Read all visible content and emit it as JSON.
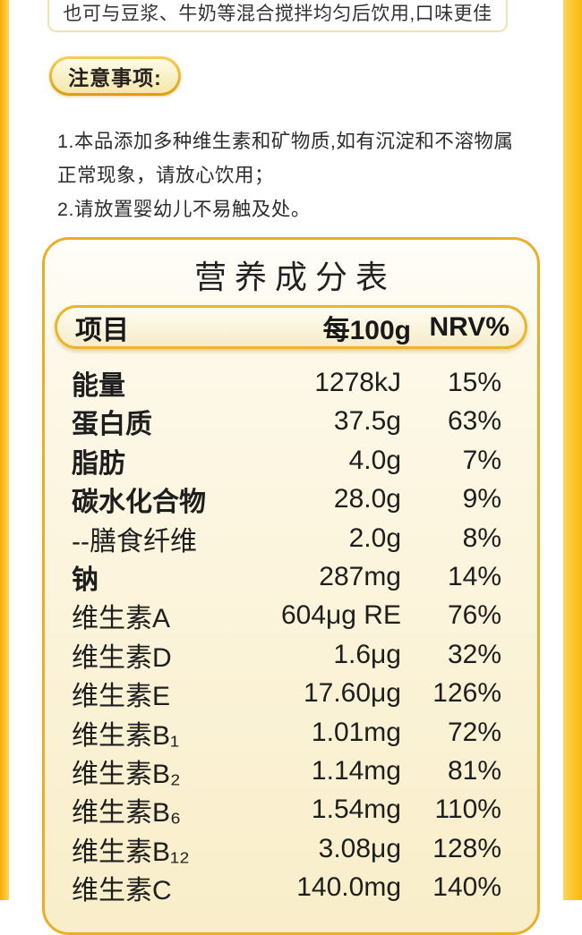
{
  "colors": {
    "rail_yellow": "#f8b909",
    "card_border_gold": "#ecae29",
    "card_fill_top": "#fffef9",
    "card_fill_bottom": "#f9eec9",
    "badge_border_gold": "#dc9f0e",
    "text_dark": "#1e1e1e"
  },
  "top_note": {
    "text": "也可与豆浆、牛奶等混合搅拌均匀后饮用,口味更佳"
  },
  "notice": {
    "badge_label": "注意事项:",
    "lines": [
      "1.本品添加多种维生素和矿物质,如有沉淀和不溶物属",
      "正常现象，请放心饮用；",
      "2.请放置婴幼儿不易触及处。"
    ]
  },
  "nutrition_table": {
    "title": "营养成分表",
    "columns": [
      "项目",
      "每100g",
      "NRV%"
    ],
    "rows": [
      {
        "name": "能量",
        "per100g": "1278kJ",
        "nrv": "15%",
        "bold": true
      },
      {
        "name": "蛋白质",
        "per100g": "37.5g",
        "nrv": "63%",
        "bold": true
      },
      {
        "name": "脂肪",
        "per100g": "4.0g",
        "nrv": "7%",
        "bold": true
      },
      {
        "name": "碳水化合物",
        "per100g": "28.0g",
        "nrv": "9%",
        "bold": true
      },
      {
        "name": "--膳食纤维",
        "per100g": "2.0g",
        "nrv": "8%",
        "bold": false
      },
      {
        "name": "钠",
        "per100g": "287mg",
        "nrv": "14%",
        "bold": true
      },
      {
        "name": "维生素A",
        "per100g": "604μg RE",
        "nrv": "76%",
        "bold": false
      },
      {
        "name": "维生素D",
        "per100g": "1.6μg",
        "nrv": "32%",
        "bold": false
      },
      {
        "name": "维生素E",
        "per100g": "17.60μg",
        "nrv": "126%",
        "bold": false
      },
      {
        "name": "维生素B₁",
        "per100g": "1.01mg",
        "nrv": "72%",
        "bold": false
      },
      {
        "name": "维生素B₂",
        "per100g": "1.14mg",
        "nrv": "81%",
        "bold": false
      },
      {
        "name": "维生素B₆",
        "per100g": "1.54mg",
        "nrv": "110%",
        "bold": false
      },
      {
        "name": "维生素B₁₂",
        "per100g": "3.08μg",
        "nrv": "128%",
        "bold": false
      },
      {
        "name": "维生素C",
        "per100g": "140.0mg",
        "nrv": "140%",
        "bold": false
      }
    ]
  }
}
